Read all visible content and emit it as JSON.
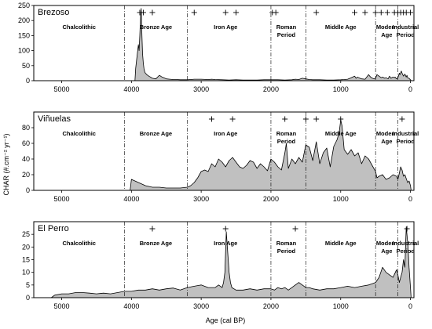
{
  "figure": {
    "ylabel": "CHAR (#.cm⁻² yr⁻¹)",
    "xlabel": "Age (cal BP)"
  },
  "chart_data": [
    {
      "type": "area",
      "title": "Brezoso",
      "xlim": [
        5400,
        -50
      ],
      "ylim": [
        0,
        250
      ],
      "yticks": [
        0,
        50,
        100,
        150,
        200,
        250
      ],
      "xticks": [
        5000,
        4000,
        3000,
        2000,
        1000,
        0
      ],
      "boundaries": [
        4100,
        3200,
        2000,
        1500,
        500,
        180
      ],
      "periods": [
        {
          "label": "Chalcolithic",
          "x": 4750
        },
        {
          "label": "Bronze Age",
          "x": 3650
        },
        {
          "label": "Iron Age",
          "x": 2650
        },
        {
          "label": "Roman\nPeriod",
          "x": 1780
        },
        {
          "label": "Middle Age",
          "x": 1000
        },
        {
          "label": "Modern\nAge",
          "x": 340
        },
        {
          "label": "Industrial\nPeriod",
          "x": 70
        }
      ],
      "peaks": [
        3880,
        3830,
        3700,
        3100,
        2650,
        2500,
        1980,
        1930,
        1350,
        800,
        650,
        500,
        420,
        330,
        230,
        180,
        140,
        100,
        60,
        0
      ],
      "series": [
        {
          "x": [
            3950,
            3940,
            3920,
            3900,
            3890,
            3880,
            3870,
            3860,
            3850,
            3840,
            3830,
            3820,
            3810,
            3800,
            3780,
            3750,
            3700,
            3650,
            3600,
            3560,
            3520,
            3500,
            3450,
            3400,
            3350,
            3300,
            3250,
            3200,
            3150,
            3100,
            3000,
            2900,
            2850,
            2800,
            2700,
            2600,
            2500,
            2400,
            2300,
            2200,
            2100,
            2000,
            1900,
            1800,
            1700,
            1650,
            1600,
            1550,
            1500,
            1450,
            1400,
            1300,
            1200,
            1100,
            1000,
            950,
            900,
            850,
            800,
            780,
            760,
            740,
            700,
            650,
            600,
            580,
            560,
            520,
            500,
            480,
            450,
            420,
            400,
            370,
            350,
            320,
            300,
            280,
            250,
            230,
            220,
            200,
            180,
            160,
            150,
            130,
            120,
            100,
            80,
            60,
            50,
            40,
            30,
            20,
            10,
            0,
            -10
          ],
          "y": [
            0,
            40,
            80,
            120,
            100,
            150,
            210,
            240,
            150,
            90,
            60,
            40,
            30,
            25,
            20,
            15,
            8,
            6,
            18,
            12,
            8,
            6,
            5,
            4,
            4,
            3,
            3,
            3,
            4,
            5,
            5,
            4,
            5,
            4,
            3,
            2,
            3,
            2,
            2,
            2,
            3,
            3,
            3,
            2,
            3,
            5,
            4,
            8,
            6,
            4,
            3,
            3,
            2,
            2,
            3,
            4,
            5,
            10,
            15,
            8,
            12,
            10,
            6,
            5,
            20,
            14,
            10,
            6,
            8,
            20,
            15,
            10,
            12,
            8,
            10,
            6,
            15,
            8,
            12,
            10,
            12,
            6,
            10,
            25,
            20,
            32,
            25,
            15,
            22,
            12,
            18,
            10,
            8,
            8,
            5,
            3,
            0
          ]
        }
      ]
    },
    {
      "type": "area",
      "title": "Viñuelas",
      "xlim": [
        5400,
        -50
      ],
      "ylim": [
        0,
        100
      ],
      "yticks": [
        0,
        20,
        40,
        60,
        80
      ],
      "xticks": [
        5000,
        4000,
        3000,
        2000,
        1000,
        0
      ],
      "boundaries": [
        4100,
        3200,
        2000,
        1500,
        500,
        180
      ],
      "periods": [
        {
          "label": "Chalcolithic",
          "x": 4750
        },
        {
          "label": "Bronze Age",
          "x": 3650
        },
        {
          "label": "Iron Age",
          "x": 2650
        },
        {
          "label": "Roman\nPeriod",
          "x": 1780
        },
        {
          "label": "Middle Age",
          "x": 1000
        },
        {
          "label": "Modern\nAge",
          "x": 340
        },
        {
          "label": "Industrial\nPeriod",
          "x": 70
        }
      ],
      "peaks": [
        2850,
        2550,
        1800,
        1500,
        1350,
        1000,
        120
      ],
      "series": [
        {
          "x": [
            4020,
            4010,
            4000,
            3950,
            3900,
            3850,
            3800,
            3750,
            3700,
            3600,
            3500,
            3400,
            3300,
            3200,
            3150,
            3100,
            3050,
            3000,
            2950,
            2900,
            2850,
            2800,
            2750,
            2700,
            2650,
            2600,
            2550,
            2500,
            2450,
            2400,
            2350,
            2300,
            2250,
            2200,
            2150,
            2100,
            2050,
            2000,
            1950,
            1900,
            1850,
            1800,
            1780,
            1750,
            1700,
            1650,
            1600,
            1550,
            1500,
            1450,
            1400,
            1350,
            1300,
            1250,
            1200,
            1150,
            1100,
            1050,
            1020,
            1000,
            980,
            950,
            900,
            850,
            800,
            750,
            700,
            650,
            600,
            550,
            500,
            480,
            450,
            400,
            350,
            300,
            250,
            200,
            180,
            160,
            140,
            120,
            100,
            80,
            60,
            40,
            20,
            0,
            -10
          ],
          "y": [
            0,
            6,
            14,
            12,
            10,
            8,
            6,
            5,
            4,
            4,
            3,
            3,
            3,
            4,
            6,
            10,
            16,
            24,
            26,
            24,
            34,
            30,
            40,
            36,
            30,
            38,
            42,
            36,
            30,
            28,
            32,
            38,
            36,
            28,
            34,
            30,
            25,
            40,
            36,
            30,
            26,
            48,
            60,
            28,
            40,
            34,
            42,
            36,
            58,
            55,
            38,
            62,
            34,
            48,
            54,
            30,
            56,
            65,
            75,
            90,
            82,
            52,
            46,
            52,
            44,
            48,
            34,
            44,
            40,
            32,
            24,
            16,
            18,
            20,
            14,
            16,
            20,
            18,
            14,
            22,
            30,
            26,
            18,
            20,
            15,
            10,
            12,
            6,
            0
          ]
        }
      ]
    },
    {
      "type": "area",
      "title": "El Perro",
      "xlim": [
        5400,
        -50
      ],
      "ylim": [
        0,
        30
      ],
      "yticks": [
        0,
        5,
        10,
        15,
        20,
        25
      ],
      "xticks": [
        5000,
        4000,
        3000,
        2000,
        1000,
        0
      ],
      "boundaries": [
        4100,
        3200,
        2000,
        1500,
        500,
        180
      ],
      "periods": [
        {
          "label": "Chalcolithic",
          "x": 4750
        },
        {
          "label": "Bronze Age",
          "x": 3650
        },
        {
          "label": "Iron Age",
          "x": 2650
        },
        {
          "label": "Roman\nPeriod",
          "x": 1780
        },
        {
          "label": "Middle Age",
          "x": 1000
        },
        {
          "label": "Modern\nAge",
          "x": 340
        },
        {
          "label": "Industrial\nPeriod",
          "x": 70
        }
      ],
      "peaks": [
        3700,
        2650,
        1650,
        50
      ],
      "series": [
        {
          "x": [
            5150,
            5100,
            5000,
            4900,
            4800,
            4700,
            4600,
            4500,
            4400,
            4300,
            4200,
            4100,
            4000,
            3900,
            3800,
            3700,
            3600,
            3500,
            3400,
            3300,
            3200,
            3100,
            3000,
            2900,
            2800,
            2750,
            2700,
            2680,
            2660,
            2640,
            2620,
            2600,
            2580,
            2560,
            2500,
            2400,
            2300,
            2200,
            2100,
            2000,
            1950,
            1900,
            1850,
            1800,
            1750,
            1700,
            1650,
            1600,
            1550,
            1500,
            1450,
            1400,
            1300,
            1200,
            1100,
            1000,
            900,
            800,
            700,
            600,
            550,
            500,
            450,
            400,
            350,
            300,
            250,
            200,
            180,
            160,
            140,
            120,
            100,
            80,
            70,
            60,
            50,
            40,
            30,
            20,
            10,
            0,
            -10
          ],
          "y": [
            0,
            1,
            1.5,
            1.5,
            2,
            2,
            1.8,
            1.5,
            1.8,
            1.5,
            2,
            2.5,
            2.5,
            3,
            3,
            3.5,
            3,
            3.5,
            3.8,
            3,
            4,
            4.5,
            5,
            4,
            4,
            5,
            4,
            6,
            10,
            26,
            18,
            10,
            6,
            4,
            3,
            3,
            3.5,
            3,
            3.5,
            3.5,
            3,
            4,
            3.5,
            4,
            3,
            4,
            5,
            6,
            5,
            4,
            4,
            3.5,
            3,
            3.5,
            3.5,
            4,
            4.5,
            4,
            4.5,
            5,
            5.5,
            6,
            8,
            12,
            10,
            9,
            8,
            11,
            9,
            6,
            8,
            10,
            15,
            12,
            20,
            28,
            25,
            22,
            18,
            12,
            8,
            4,
            0
          ]
        }
      ]
    }
  ]
}
